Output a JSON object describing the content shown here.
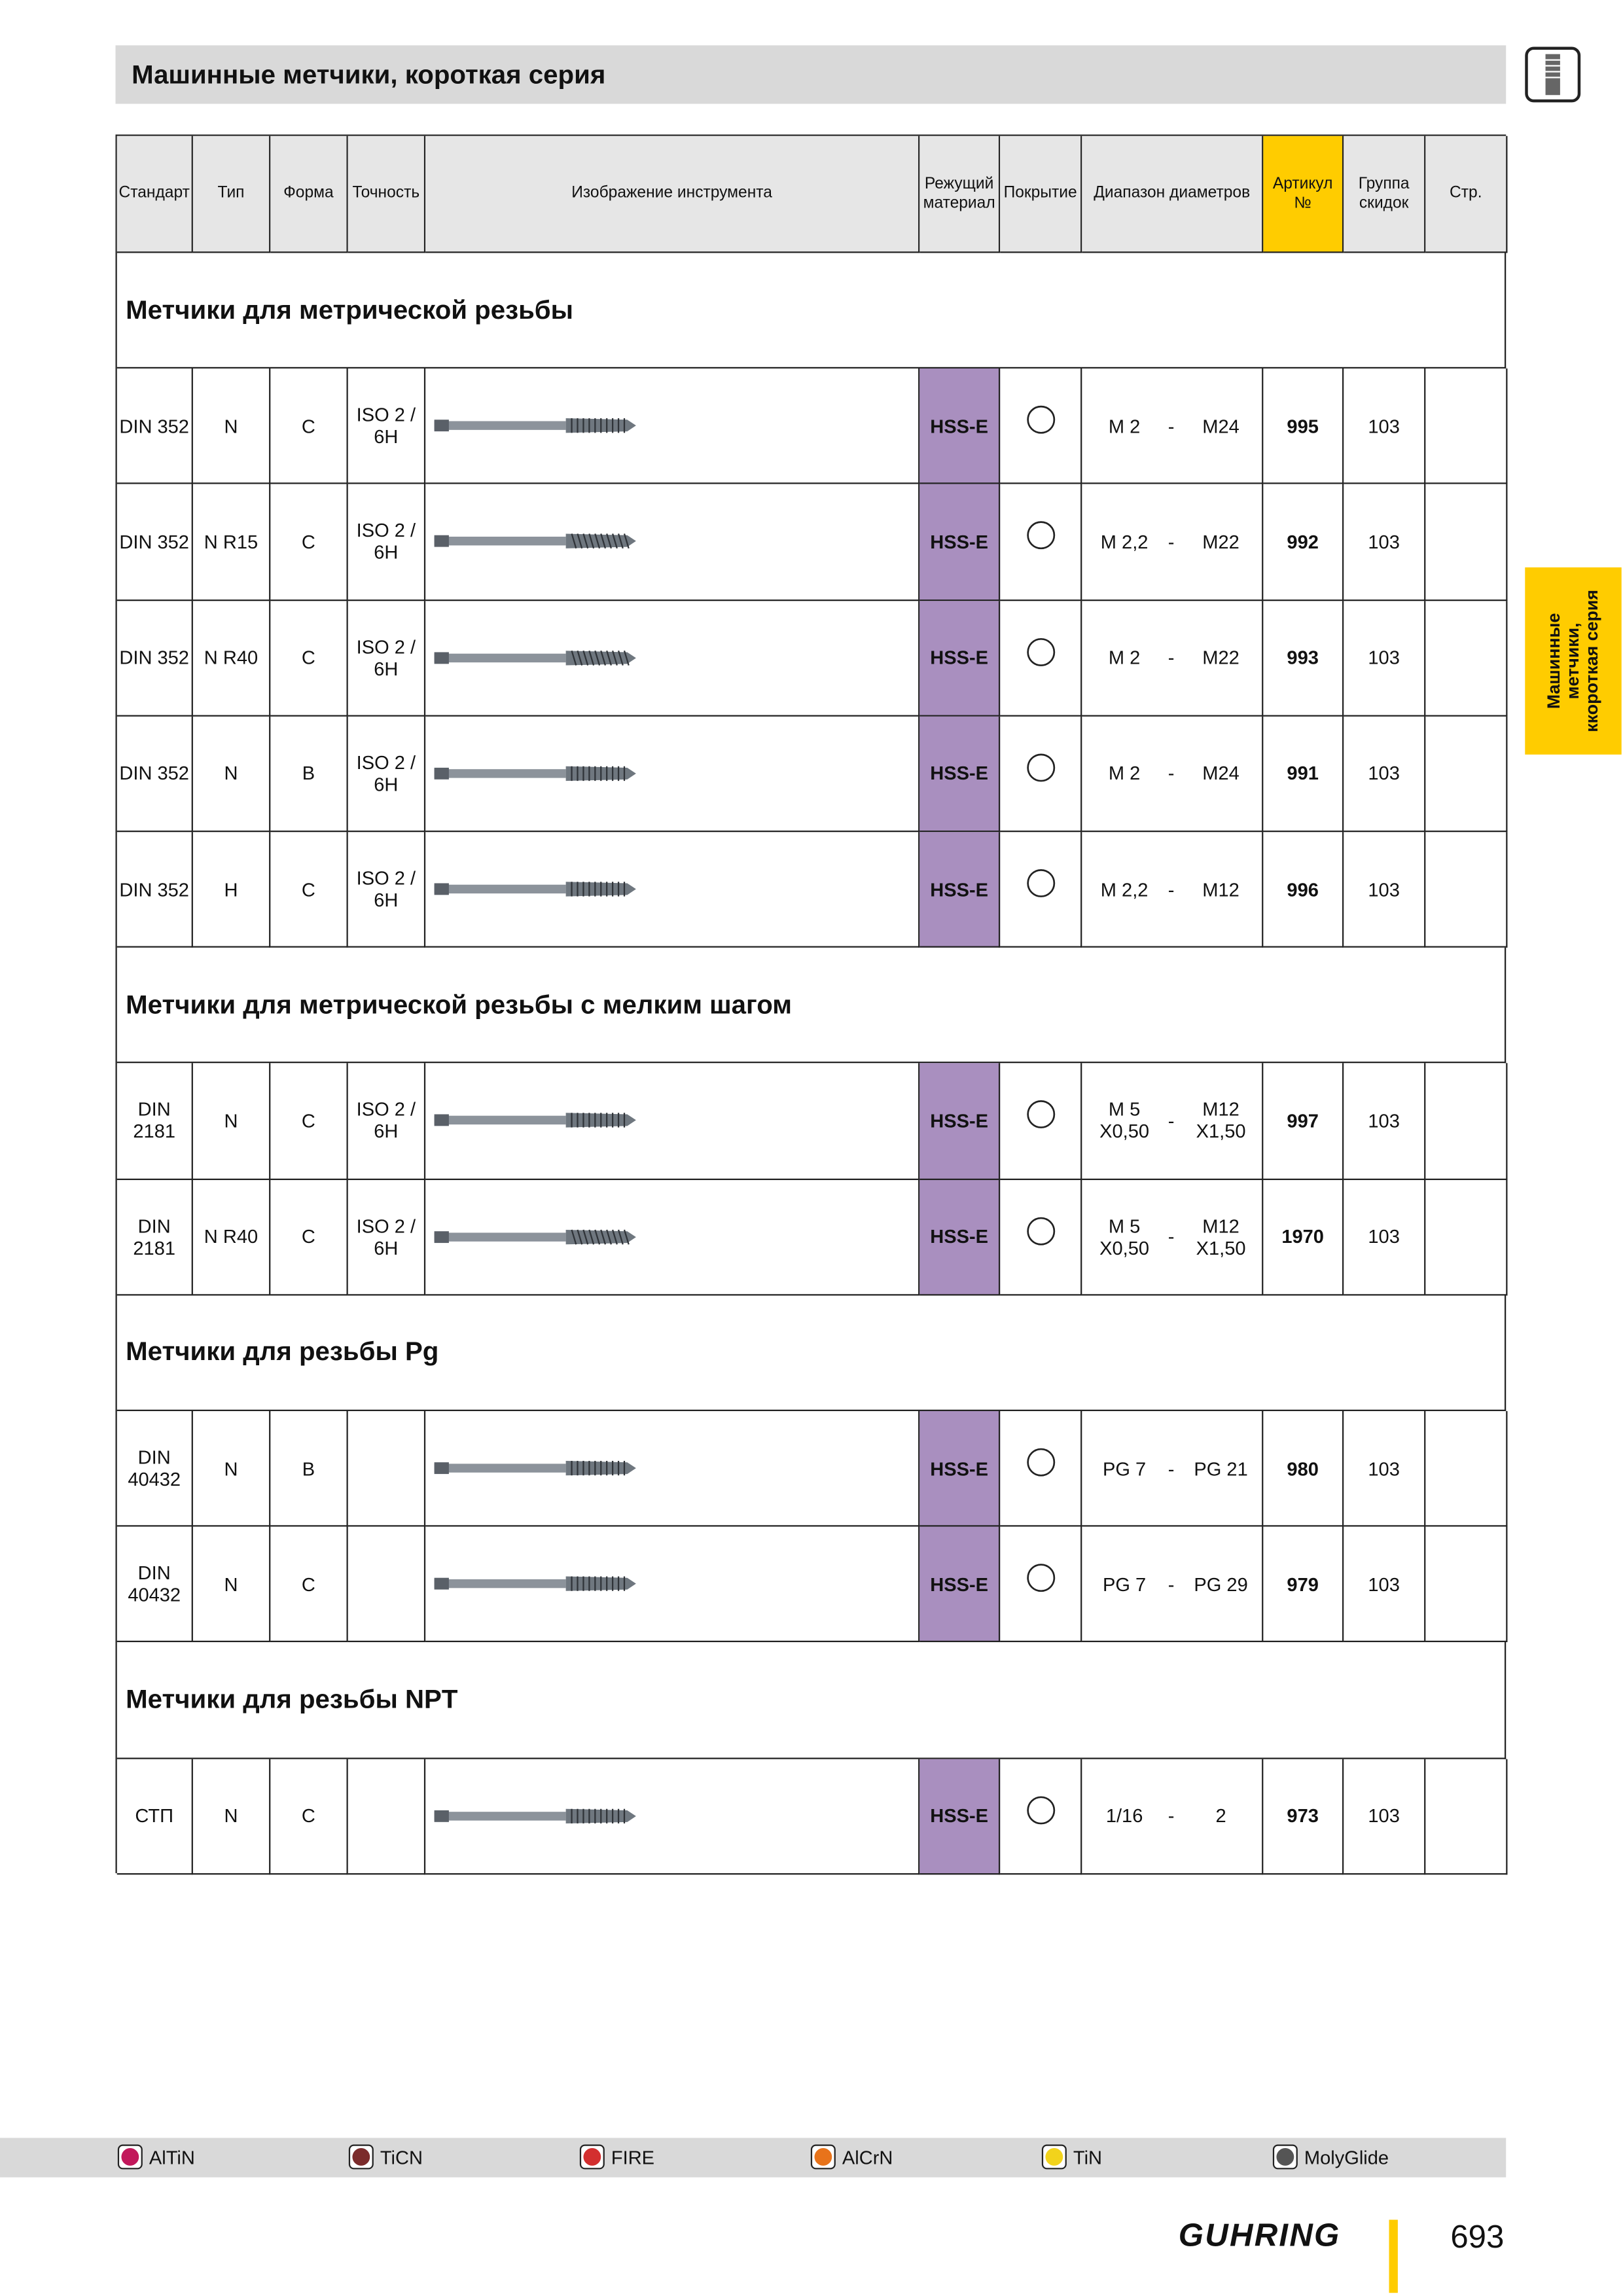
{
  "header": {
    "title": "Машинные метчики, короткая серия"
  },
  "side_tab": {
    "label": "Машинные\nметчики,\nккороткая серия"
  },
  "table": {
    "columns": [
      "Стандарт",
      "Тип",
      "Форма",
      "Точность",
      "Изображение инструмента",
      "Режущий материал",
      "Покрытие",
      "Диапазон диаметров",
      "Артикул №",
      "Группа скидок",
      "Стр."
    ],
    "sections": [
      {
        "title": "Метчики для метрической резьбы",
        "rows": [
          {
            "standard": "DIN 352",
            "type": "N",
            "form": "C",
            "tolerance": "ISO 2 / 6H",
            "material": "HSS-E",
            "range": [
              "M 2",
              "-",
              "M24"
            ],
            "article": 995,
            "discount_group": 103
          },
          {
            "standard": "DIN 352",
            "type": "N R15",
            "form": "C",
            "tolerance": "ISO 2 / 6H",
            "material": "HSS-E",
            "range": [
              "M 2,2",
              "-",
              "M22"
            ],
            "article": 992,
            "discount_group": 103
          },
          {
            "standard": "DIN 352",
            "type": "N R40",
            "form": "C",
            "tolerance": "ISO 2 / 6H",
            "material": "HSS-E",
            "range": [
              "M 2",
              "-",
              "M22"
            ],
            "article": 993,
            "discount_group": 103
          },
          {
            "standard": "DIN 352",
            "type": "N",
            "form": "B",
            "tolerance": "ISO 2 / 6H",
            "material": "HSS-E",
            "range": [
              "M 2",
              "-",
              "M24"
            ],
            "article": 991,
            "discount_group": 103
          },
          {
            "standard": "DIN 352",
            "type": "H",
            "form": "C",
            "tolerance": "ISO 2 / 6H",
            "material": "HSS-E",
            "range": [
              "M 2,2",
              "-",
              "M12"
            ],
            "article": 996,
            "discount_group": 103
          }
        ]
      },
      {
        "title": "Метчики для метрической резьбы с мелким шагом",
        "rows": [
          {
            "standard": "DIN 2181",
            "type": "N",
            "form": "C",
            "tolerance": "ISO 2 / 6H",
            "material": "HSS-E",
            "range": [
              "M 5\nX0,50",
              "-",
              "M12\nX1,50"
            ],
            "article": 997,
            "discount_group": 103
          },
          {
            "standard": "DIN 2181",
            "type": "N R40",
            "form": "C",
            "tolerance": "ISO 2 / 6H",
            "material": "HSS-E",
            "range": [
              "M 5\nX0,50",
              "-",
              "M12\nX1,50"
            ],
            "article": 1970,
            "discount_group": 103
          }
        ]
      },
      {
        "title": "Метчики для резьбы Pg",
        "rows": [
          {
            "standard": "DIN 40432",
            "type": "N",
            "form": "B",
            "material": "HSS-E",
            "range": [
              "PG 7",
              "-",
              "PG 21"
            ],
            "article": 980,
            "discount_group": 103
          },
          {
            "standard": "DIN 40432",
            "type": "N",
            "form": "C",
            "material": "HSS-E",
            "range": [
              "PG 7",
              "-",
              "PG 29"
            ],
            "article": 979,
            "discount_group": 103
          }
        ]
      },
      {
        "title": "Метчики для резьбы NPT",
        "rows": [
          {
            "standard": "СТП",
            "type": "N",
            "form": "C",
            "material": "HSS-E",
            "range": [
              "1/16",
              "-",
              "2"
            ],
            "article": 973,
            "discount_group": 103
          }
        ]
      }
    ]
  },
  "footer": {
    "coatings": [
      "AlTiN",
      "TiCN",
      "FIRE",
      "AlCrN",
      "TiN",
      "MolyGlide"
    ],
    "brand": "GUHRING",
    "page": 693
  }
}
